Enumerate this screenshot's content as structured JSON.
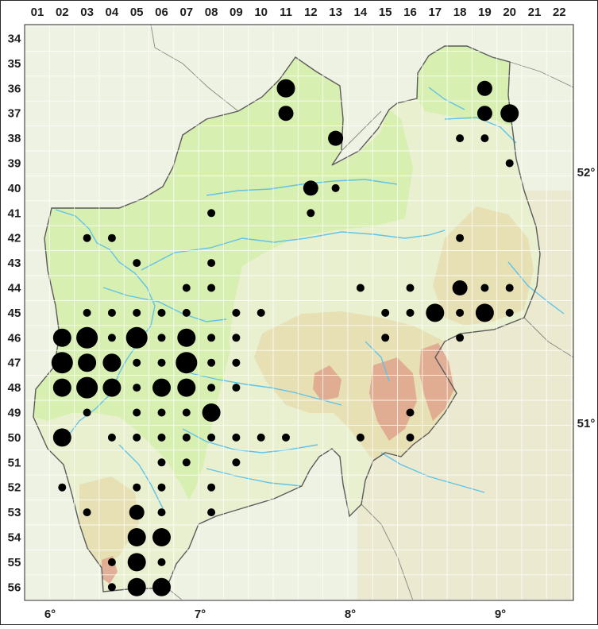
{
  "colors": {
    "frame": "#2a2a2a",
    "background_terrain": "#eef2e2",
    "lowland": "#d7efb0",
    "region_fill": "#e9f0cf",
    "upland": "#e6dcae",
    "highland": "#df9f8a",
    "river": "#5fc3e8",
    "border": "#5b5b5b",
    "dot": "#000000"
  },
  "icons": [
    "occurrence-dot"
  ],
  "grid": {
    "columns": [
      "01",
      "02",
      "03",
      "04",
      "05",
      "06",
      "07",
      "08",
      "09",
      "10",
      "11",
      "12",
      "13",
      "14",
      "15",
      "16",
      "17",
      "18",
      "19",
      "20",
      "21",
      "22"
    ],
    "rows": [
      "34",
      "35",
      "36",
      "37",
      "38",
      "39",
      "40",
      "41",
      "42",
      "43",
      "44",
      "45",
      "46",
      "47",
      "48",
      "49",
      "50",
      "51",
      "52",
      "53",
      "54",
      "55",
      "56"
    ],
    "longitude_labels": [
      {
        "label": "6°",
        "deg": 6
      },
      {
        "label": "7°",
        "deg": 7
      },
      {
        "label": "8°",
        "deg": 8
      },
      {
        "label": "9°",
        "deg": 9
      }
    ],
    "latitude_labels": [
      {
        "label": "52°",
        "deg": 52
      },
      {
        "label": "51°",
        "deg": 51
      }
    ]
  },
  "occurrence_legend": {
    "classes": [
      {
        "size": "small"
      },
      {
        "size": "medium"
      },
      {
        "size": "large"
      },
      {
        "size": "xlarge"
      }
    ]
  },
  "occurrences": [
    {
      "col": "11",
      "row": "36",
      "size": "large"
    },
    {
      "col": "19",
      "row": "36",
      "size": "medium"
    },
    {
      "col": "11",
      "row": "37",
      "size": "medium"
    },
    {
      "col": "19",
      "row": "37",
      "size": "medium"
    },
    {
      "col": "20",
      "row": "37",
      "size": "large"
    },
    {
      "col": "13",
      "row": "38",
      "size": "medium"
    },
    {
      "col": "18",
      "row": "38",
      "size": "small"
    },
    {
      "col": "19",
      "row": "38",
      "size": "small"
    },
    {
      "col": "20",
      "row": "39",
      "size": "small"
    },
    {
      "col": "12",
      "row": "40",
      "size": "medium"
    },
    {
      "col": "13",
      "row": "40",
      "size": "small"
    },
    {
      "col": "08",
      "row": "41",
      "size": "small"
    },
    {
      "col": "12",
      "row": "41",
      "size": "small"
    },
    {
      "col": "03",
      "row": "42",
      "size": "small"
    },
    {
      "col": "04",
      "row": "42",
      "size": "small"
    },
    {
      "col": "18",
      "row": "42",
      "size": "small"
    },
    {
      "col": "05",
      "row": "43",
      "size": "small"
    },
    {
      "col": "08",
      "row": "43",
      "size": "small"
    },
    {
      "col": "07",
      "row": "44",
      "size": "small"
    },
    {
      "col": "08",
      "row": "44",
      "size": "small"
    },
    {
      "col": "14",
      "row": "44",
      "size": "small"
    },
    {
      "col": "16",
      "row": "44",
      "size": "small"
    },
    {
      "col": "18",
      "row": "44",
      "size": "medium"
    },
    {
      "col": "19",
      "row": "44",
      "size": "small"
    },
    {
      "col": "20",
      "row": "44",
      "size": "small"
    },
    {
      "col": "03",
      "row": "45",
      "size": "small"
    },
    {
      "col": "04",
      "row": "45",
      "size": "small"
    },
    {
      "col": "05",
      "row": "45",
      "size": "small"
    },
    {
      "col": "06",
      "row": "45",
      "size": "small"
    },
    {
      "col": "07",
      "row": "45",
      "size": "small"
    },
    {
      "col": "09",
      "row": "45",
      "size": "small"
    },
    {
      "col": "10",
      "row": "45",
      "size": "small"
    },
    {
      "col": "15",
      "row": "45",
      "size": "small"
    },
    {
      "col": "16",
      "row": "45",
      "size": "small"
    },
    {
      "col": "17",
      "row": "45",
      "size": "large"
    },
    {
      "col": "18",
      "row": "45",
      "size": "small"
    },
    {
      "col": "19",
      "row": "45",
      "size": "large"
    },
    {
      "col": "20",
      "row": "45",
      "size": "small"
    },
    {
      "col": "02",
      "row": "46",
      "size": "large"
    },
    {
      "col": "03",
      "row": "46",
      "size": "xlarge"
    },
    {
      "col": "04",
      "row": "46",
      "size": "small"
    },
    {
      "col": "05",
      "row": "46",
      "size": "xlarge"
    },
    {
      "col": "06",
      "row": "46",
      "size": "small"
    },
    {
      "col": "07",
      "row": "46",
      "size": "large"
    },
    {
      "col": "08",
      "row": "46",
      "size": "small"
    },
    {
      "col": "09",
      "row": "46",
      "size": "small"
    },
    {
      "col": "15",
      "row": "46",
      "size": "small"
    },
    {
      "col": "18",
      "row": "46",
      "size": "small"
    },
    {
      "col": "02",
      "row": "47",
      "size": "xlarge"
    },
    {
      "col": "03",
      "row": "47",
      "size": "large"
    },
    {
      "col": "04",
      "row": "47",
      "size": "large"
    },
    {
      "col": "05",
      "row": "47",
      "size": "small"
    },
    {
      "col": "06",
      "row": "47",
      "size": "small"
    },
    {
      "col": "07",
      "row": "47",
      "size": "xlarge"
    },
    {
      "col": "08",
      "row": "47",
      "size": "small"
    },
    {
      "col": "09",
      "row": "47",
      "size": "small"
    },
    {
      "col": "02",
      "row": "48",
      "size": "large"
    },
    {
      "col": "03",
      "row": "48",
      "size": "xlarge"
    },
    {
      "col": "04",
      "row": "48",
      "size": "large"
    },
    {
      "col": "05",
      "row": "48",
      "size": "small"
    },
    {
      "col": "06",
      "row": "48",
      "size": "large"
    },
    {
      "col": "07",
      "row": "48",
      "size": "large"
    },
    {
      "col": "08",
      "row": "48",
      "size": "small"
    },
    {
      "col": "09",
      "row": "48",
      "size": "small"
    },
    {
      "col": "03",
      "row": "49",
      "size": "small"
    },
    {
      "col": "05",
      "row": "49",
      "size": "small"
    },
    {
      "col": "06",
      "row": "49",
      "size": "small"
    },
    {
      "col": "07",
      "row": "49",
      "size": "small"
    },
    {
      "col": "08",
      "row": "49",
      "size": "large"
    },
    {
      "col": "16",
      "row": "49",
      "size": "small"
    },
    {
      "col": "02",
      "row": "50",
      "size": "large"
    },
    {
      "col": "04",
      "row": "50",
      "size": "small"
    },
    {
      "col": "05",
      "row": "50",
      "size": "small"
    },
    {
      "col": "06",
      "row": "50",
      "size": "small"
    },
    {
      "col": "07",
      "row": "50",
      "size": "small"
    },
    {
      "col": "08",
      "row": "50",
      "size": "small"
    },
    {
      "col": "09",
      "row": "50",
      "size": "small"
    },
    {
      "col": "10",
      "row": "50",
      "size": "small"
    },
    {
      "col": "11",
      "row": "50",
      "size": "small"
    },
    {
      "col": "14",
      "row": "50",
      "size": "small"
    },
    {
      "col": "16",
      "row": "50",
      "size": "small"
    },
    {
      "col": "06",
      "row": "51",
      "size": "small"
    },
    {
      "col": "07",
      "row": "51",
      "size": "small"
    },
    {
      "col": "09",
      "row": "51",
      "size": "small"
    },
    {
      "col": "02",
      "row": "52",
      "size": "small"
    },
    {
      "col": "05",
      "row": "52",
      "size": "small"
    },
    {
      "col": "06",
      "row": "52",
      "size": "small"
    },
    {
      "col": "08",
      "row": "52",
      "size": "small"
    },
    {
      "col": "03",
      "row": "53",
      "size": "small"
    },
    {
      "col": "05",
      "row": "53",
      "size": "medium"
    },
    {
      "col": "06",
      "row": "53",
      "size": "small"
    },
    {
      "col": "08",
      "row": "53",
      "size": "small"
    },
    {
      "col": "05",
      "row": "54",
      "size": "large"
    },
    {
      "col": "06",
      "row": "54",
      "size": "large"
    },
    {
      "col": "04",
      "row": "55",
      "size": "small"
    },
    {
      "col": "05",
      "row": "55",
      "size": "large"
    },
    {
      "col": "06",
      "row": "55",
      "size": "small"
    },
    {
      "col": "04",
      "row": "56",
      "size": "small"
    },
    {
      "col": "05",
      "row": "56",
      "size": "large"
    },
    {
      "col": "06",
      "row": "56",
      "size": "large"
    }
  ]
}
